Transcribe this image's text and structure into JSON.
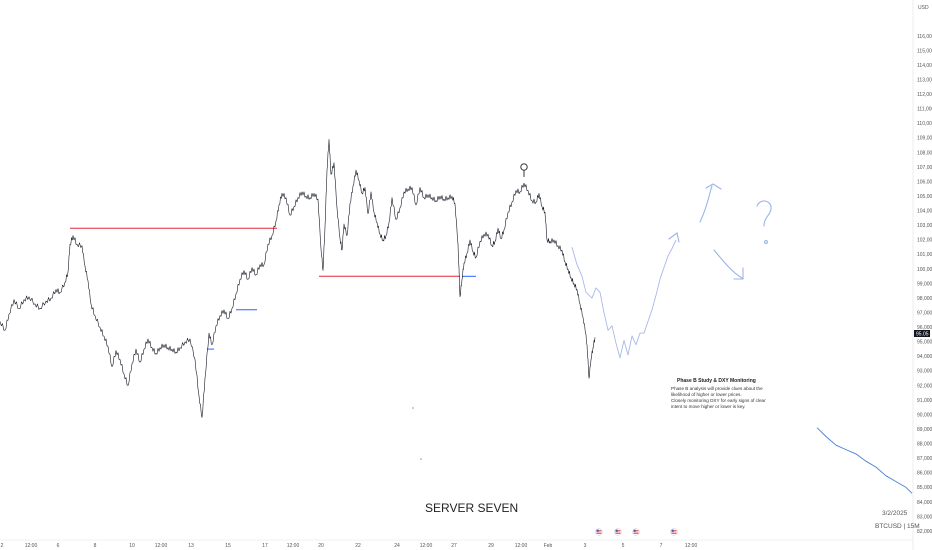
{
  "chart_data": {
    "type": "line",
    "currency": "USD",
    "symbol_label": "BTCUSD | 15M",
    "date_stamp": "3/2/2025",
    "watermark": "SERVER SEVEN",
    "price_tag": "95.05",
    "y_ticks": [
      "82,000",
      "83,000",
      "84,000",
      "85,000",
      "86,000",
      "87,000",
      "88,000",
      "89,000",
      "90,000",
      "91,000",
      "92,000",
      "93,000",
      "94,000",
      "95,000",
      "96,000",
      "97,000",
      "98,000",
      "99,000",
      "100,000",
      "101,000",
      "102,000",
      "103,000",
      "104,000",
      "105,000",
      "106,000",
      "107,000",
      "108,000",
      "109,000",
      "110,000",
      "111,000",
      "112,000",
      "113,000",
      "114,000",
      "115,000",
      "116,000"
    ],
    "x_ticks": [
      "2",
      "12:00",
      "6",
      "8",
      "10",
      "12:00",
      "13",
      "15",
      "17",
      "12:00",
      "20",
      "22",
      "24",
      "12:00",
      "27",
      "29",
      "12:00",
      "Feb",
      "3",
      "5",
      "7",
      "12:00"
    ],
    "ylim": [
      82000,
      116900
    ],
    "series": [
      {
        "color": "#131722",
        "values": [
          [
            0,
            96400
          ],
          [
            5,
            95800
          ],
          [
            9,
            96900
          ],
          [
            14,
            97900
          ],
          [
            19,
            97300
          ],
          [
            24,
            97900
          ],
          [
            29,
            98100
          ],
          [
            35,
            97600
          ],
          [
            40,
            97300
          ],
          [
            46,
            97800
          ],
          [
            51,
            98000
          ],
          [
            56,
            98600
          ],
          [
            60,
            98400
          ],
          [
            65,
            99100
          ],
          [
            68,
            99800
          ],
          [
            70,
            101700
          ],
          [
            73,
            102300
          ],
          [
            77,
            101700
          ],
          [
            82,
            101600
          ],
          [
            85,
            100200
          ],
          [
            88,
            99200
          ],
          [
            91,
            97600
          ],
          [
            95,
            96800
          ],
          [
            100,
            96000
          ],
          [
            104,
            95400
          ],
          [
            108,
            94700
          ],
          [
            112,
            93300
          ],
          [
            116,
            94400
          ],
          [
            120,
            93800
          ],
          [
            124,
            92800
          ],
          [
            128,
            92000
          ],
          [
            132,
            93500
          ],
          [
            136,
            94500
          ],
          [
            140,
            93600
          ],
          [
            144,
            94500
          ],
          [
            148,
            95200
          ],
          [
            152,
            94600
          ],
          [
            156,
            94200
          ],
          [
            160,
            94600
          ],
          [
            164,
            94800
          ],
          [
            168,
            94600
          ],
          [
            172,
            94500
          ],
          [
            176,
            94300
          ],
          [
            180,
            94600
          ],
          [
            185,
            95000
          ],
          [
            190,
            95200
          ],
          [
            195,
            93800
          ],
          [
            199,
            91300
          ],
          [
            202,
            89800
          ],
          [
            205,
            92500
          ],
          [
            209,
            95600
          ],
          [
            212,
            94800
          ],
          [
            216,
            96100
          ],
          [
            220,
            96800
          ],
          [
            224,
            97200
          ],
          [
            228,
            96600
          ],
          [
            232,
            97300
          ],
          [
            236,
            98300
          ],
          [
            240,
            99300
          ],
          [
            244,
            99900
          ],
          [
            248,
            99300
          ],
          [
            252,
            100100
          ],
          [
            256,
            99600
          ],
          [
            260,
            100300
          ],
          [
            264,
            100300
          ],
          [
            268,
            101700
          ],
          [
            272,
            102300
          ],
          [
            276,
            103300
          ],
          [
            279,
            104400
          ],
          [
            282,
            105200
          ],
          [
            286,
            104900
          ],
          [
            290,
            103700
          ],
          [
            294,
            104300
          ],
          [
            298,
            104900
          ],
          [
            302,
            105300
          ],
          [
            306,
            105000
          ],
          [
            310,
            104900
          ],
          [
            314,
            105200
          ],
          [
            318,
            104800
          ],
          [
            321,
            101400
          ],
          [
            323,
            99900
          ],
          [
            325,
            102900
          ],
          [
            327,
            106800
          ],
          [
            329,
            108900
          ],
          [
            331,
            106500
          ],
          [
            334,
            107300
          ],
          [
            337,
            104200
          ],
          [
            340,
            102100
          ],
          [
            342,
            101300
          ],
          [
            344,
            103100
          ],
          [
            347,
            102300
          ],
          [
            350,
            104500
          ],
          [
            353,
            105700
          ],
          [
            356,
            106800
          ],
          [
            359,
            106100
          ],
          [
            362,
            105200
          ],
          [
            365,
            105600
          ],
          [
            368,
            103800
          ],
          [
            371,
            105300
          ],
          [
            374,
            103900
          ],
          [
            377,
            103200
          ],
          [
            380,
            102400
          ],
          [
            383,
            102000
          ],
          [
            386,
            102300
          ],
          [
            389,
            103200
          ],
          [
            392,
            104900
          ],
          [
            396,
            103400
          ],
          [
            400,
            104200
          ],
          [
            404,
            105300
          ],
          [
            408,
            105500
          ],
          [
            412,
            105600
          ],
          [
            416,
            104400
          ],
          [
            420,
            105600
          ],
          [
            424,
            104900
          ],
          [
            428,
            105100
          ],
          [
            432,
            104900
          ],
          [
            436,
            104700
          ],
          [
            440,
            105000
          ],
          [
            444,
            104800
          ],
          [
            448,
            104900
          ],
          [
            452,
            105000
          ],
          [
            455,
            104500
          ],
          [
            458,
            101700
          ],
          [
            460,
            98100
          ],
          [
            462,
            99300
          ],
          [
            464,
            100400
          ],
          [
            467,
            101100
          ],
          [
            470,
            102000
          ],
          [
            473,
            101200
          ],
          [
            476,
            100800
          ],
          [
            480,
            101900
          ],
          [
            484,
            102400
          ],
          [
            488,
            102400
          ],
          [
            492,
            101600
          ],
          [
            495,
            101900
          ],
          [
            498,
            102800
          ],
          [
            501,
            102100
          ],
          [
            504,
            102700
          ],
          [
            508,
            103900
          ],
          [
            512,
            104600
          ],
          [
            516,
            105400
          ],
          [
            520,
            105300
          ],
          [
            524,
            105900
          ],
          [
            528,
            105400
          ],
          [
            532,
            104700
          ],
          [
            536,
            104600
          ],
          [
            539,
            105200
          ],
          [
            542,
            104300
          ],
          [
            545,
            103900
          ],
          [
            547,
            102000
          ],
          [
            550,
            101900
          ],
          [
            554,
            102000
          ],
          [
            558,
            101600
          ],
          [
            562,
            101300
          ],
          [
            565,
            100500
          ],
          [
            568,
            100000
          ],
          [
            571,
            99400
          ],
          [
            574,
            99000
          ],
          [
            577,
            98600
          ],
          [
            580,
            97600
          ],
          [
            583,
            96700
          ],
          [
            586,
            95500
          ],
          [
            588,
            93800
          ],
          [
            589,
            92500
          ],
          [
            591,
            93800
          ],
          [
            593,
            94600
          ],
          [
            595,
            95300
          ]
        ]
      },
      {
        "color": "#a8b8e8",
        "values": [
          [
            572,
            101500
          ],
          [
            577,
            100300
          ],
          [
            582,
            99500
          ],
          [
            586,
            98400
          ],
          [
            592,
            98000
          ],
          [
            596,
            98700
          ],
          [
            600,
            98400
          ],
          [
            604,
            97000
          ],
          [
            608,
            95800
          ],
          [
            612,
            96100
          ],
          [
            616,
            94900
          ],
          [
            620,
            93900
          ],
          [
            624,
            95100
          ],
          [
            628,
            94100
          ],
          [
            632,
            95400
          ],
          [
            636,
            94800
          ],
          [
            640,
            95600
          ],
          [
            644,
            95600
          ],
          [
            648,
            96400
          ],
          [
            652,
            97200
          ],
          [
            656,
            98200
          ],
          [
            660,
            99300
          ],
          [
            664,
            100100
          ],
          [
            668,
            100900
          ],
          [
            672,
            101400
          ],
          [
            676,
            102000
          ]
        ]
      },
      {
        "color": "#4a7fd4",
        "values": [
          [
            817,
            89100
          ],
          [
            826,
            88500
          ],
          [
            836,
            87900
          ],
          [
            846,
            87600
          ],
          [
            856,
            87300
          ],
          [
            866,
            86800
          ],
          [
            876,
            86400
          ],
          [
            886,
            85800
          ],
          [
            896,
            85400
          ],
          [
            906,
            85000
          ],
          [
            912,
            84600
          ]
        ]
      }
    ],
    "levels": [
      {
        "price": 102800,
        "x_start": 70,
        "x_end": 277,
        "color": "#e0283c"
      },
      {
        "price": 99500,
        "x_start": 319,
        "x_end": 460,
        "color": "#e0283c"
      },
      {
        "price": 97200,
        "x_start": 236,
        "x_end": 257,
        "color": "#2962ff"
      },
      {
        "price": 94500,
        "x_start": 207,
        "x_end": 214,
        "color": "#2962ff"
      },
      {
        "price": 99500,
        "x_start": 462,
        "x_end": 476,
        "color": "#2962ff"
      }
    ],
    "annotation": {
      "title": "Phase B Study & DXY Monitoring",
      "lines": [
        "Phase B analysis will provide clues about the",
        "likelihood of higher or lower prices.",
        "Closely monitoring DXY for early signs of clear",
        "intent to move higher or lower is key."
      ]
    },
    "sketch_color": "#9ab4e8",
    "event_colors": [
      "#e63946",
      "#3a5fcd"
    ]
  }
}
